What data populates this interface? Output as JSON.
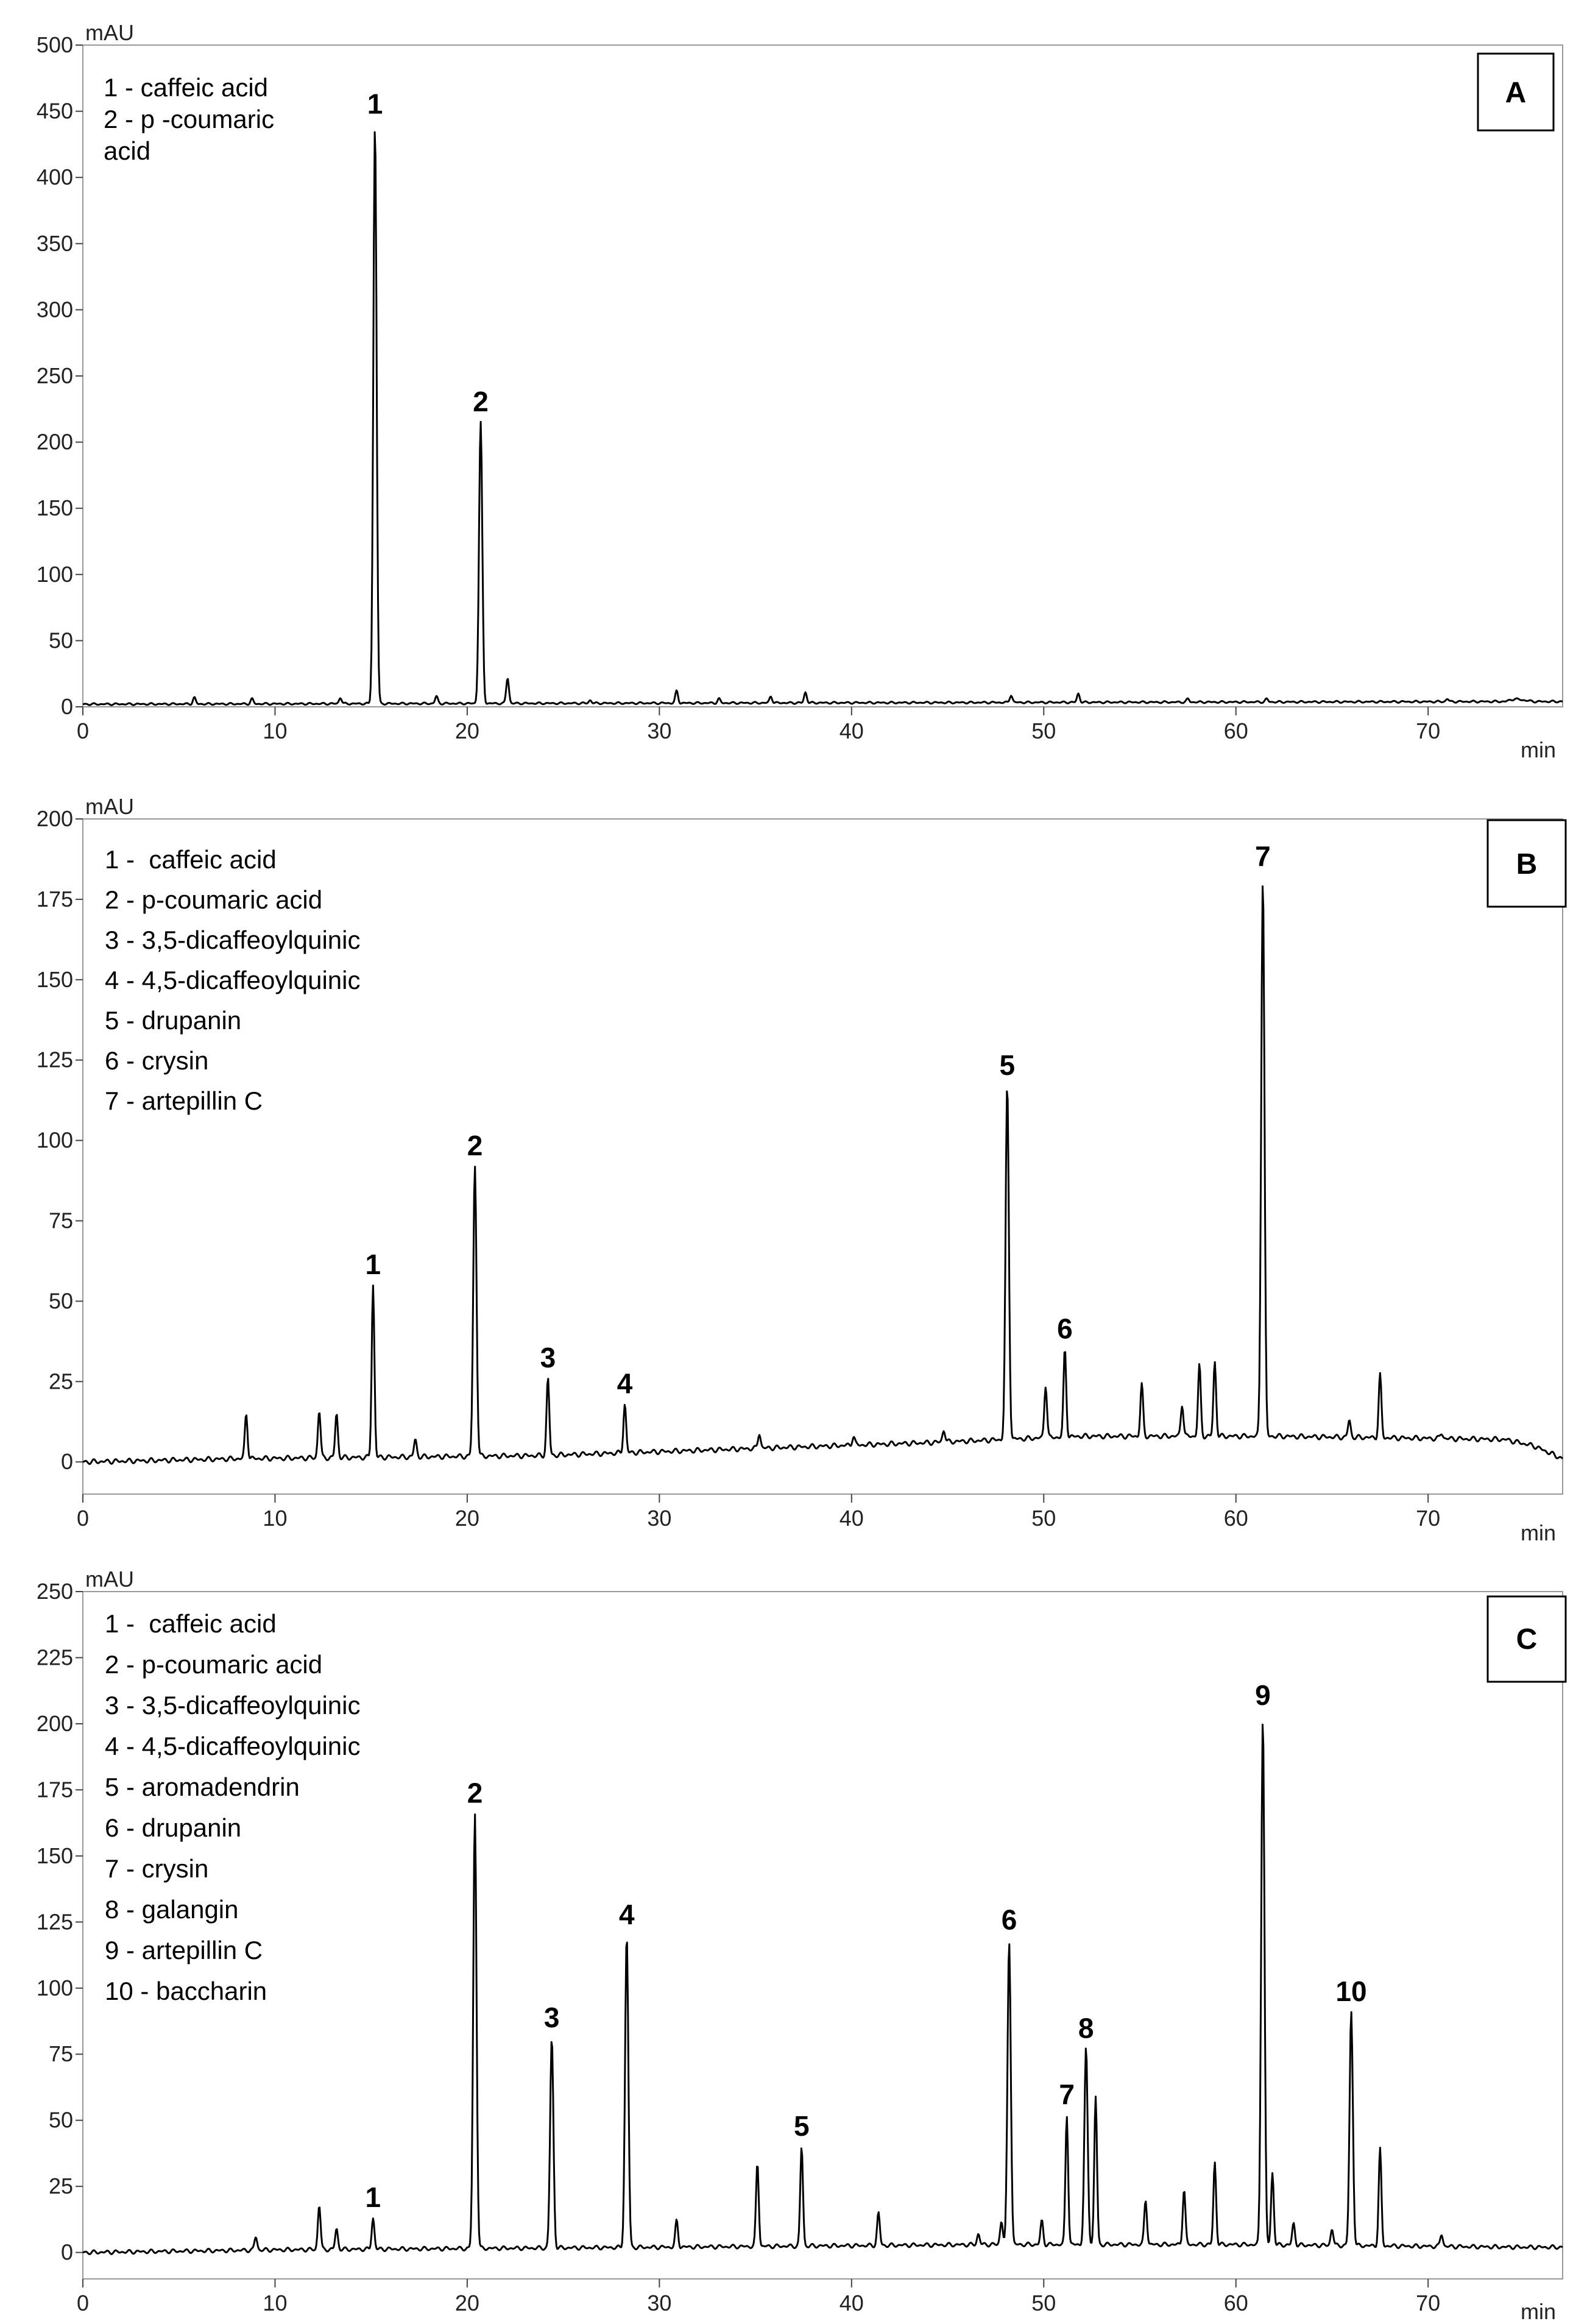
{
  "chart_data": [
    {
      "type": "line",
      "panel": "A",
      "x_unit": "min",
      "y_unit": "mAU",
      "xlim": [
        0,
        77
      ],
      "ylim": [
        0,
        500
      ],
      "xticks": [
        "0",
        "10",
        "20",
        "30",
        "40",
        "50",
        "60",
        "70"
      ],
      "yticks": [
        "0",
        "50",
        "100",
        "150",
        "200",
        "250",
        "300",
        "350",
        "400",
        "450",
        "500"
      ],
      "legend": [
        "1 - caffeic acid",
        "2 - p -coumaric",
        "acid"
      ],
      "legend_position": "top-left",
      "baseline": [
        [
          0,
          2
        ],
        [
          74,
          4
        ],
        [
          74.5,
          6
        ],
        [
          75.5,
          4
        ],
        [
          77,
          4
        ]
      ],
      "peaks": [
        {
          "label": "1",
          "x": 15.2,
          "y": 440
        },
        {
          "label": "2",
          "x": 20.7,
          "y": 215
        },
        {
          "label": "",
          "x": 5.8,
          "y": 7
        },
        {
          "label": "",
          "x": 8.8,
          "y": 6
        },
        {
          "label": "",
          "x": 13.4,
          "y": 7
        },
        {
          "label": "",
          "x": 18.4,
          "y": 8
        },
        {
          "label": "",
          "x": 22.1,
          "y": 22
        },
        {
          "label": "",
          "x": 26.4,
          "y": 5
        },
        {
          "label": "",
          "x": 30.9,
          "y": 12
        },
        {
          "label": "",
          "x": 33.1,
          "y": 6
        },
        {
          "label": "",
          "x": 35.8,
          "y": 8
        },
        {
          "label": "",
          "x": 37.6,
          "y": 11
        },
        {
          "label": "",
          "x": 48.3,
          "y": 9
        },
        {
          "label": "",
          "x": 51.8,
          "y": 10
        },
        {
          "label": "",
          "x": 57.5,
          "y": 6
        },
        {
          "label": "",
          "x": 61.6,
          "y": 6
        },
        {
          "label": "",
          "x": 71.0,
          "y": 6
        }
      ]
    },
    {
      "type": "line",
      "panel": "B",
      "x_unit": "min",
      "y_unit": "mAU",
      "xlim": [
        0,
        77
      ],
      "ylim": [
        -10,
        200
      ],
      "xticks": [
        "0",
        "10",
        "20",
        "30",
        "40",
        "50",
        "60",
        "70"
      ],
      "yticks": [
        "0",
        "25",
        "50",
        "75",
        "100",
        "125",
        "150",
        "175",
        "200"
      ],
      "legend": [
        "1 -  caffeic acid",
        "2 - p-coumaric acid",
        "3 - 3,5-dicaffeoylquinic",
        "4 - 4,5-dicaffeoylquinic",
        "5 - drupanin",
        "6 - crysin",
        "7 - artepillin C"
      ],
      "legend_position": "top-left",
      "baseline": [
        [
          0,
          0
        ],
        [
          8,
          1
        ],
        [
          24,
          2
        ],
        [
          34,
          4
        ],
        [
          44,
          6
        ],
        [
          52,
          8
        ],
        [
          62,
          8
        ],
        [
          74,
          7
        ],
        [
          75.5,
          5
        ],
        [
          77,
          1
        ]
      ],
      "peaks": [
        {
          "label": "1",
          "x": 15.1,
          "y": 55
        },
        {
          "label": "2",
          "x": 20.4,
          "y": 92
        },
        {
          "label": "3",
          "x": 24.2,
          "y": 26
        },
        {
          "label": "4",
          "x": 28.2,
          "y": 18
        },
        {
          "label": "5",
          "x": 48.1,
          "y": 117
        },
        {
          "label": "6",
          "x": 51.1,
          "y": 35
        },
        {
          "label": "7",
          "x": 61.4,
          "y": 182
        },
        {
          "label": "",
          "x": 8.5,
          "y": 15
        },
        {
          "label": "",
          "x": 12.3,
          "y": 16
        },
        {
          "label": "",
          "x": 13.2,
          "y": 15
        },
        {
          "label": "",
          "x": 17.3,
          "y": 7
        },
        {
          "label": "",
          "x": 35.2,
          "y": 9
        },
        {
          "label": "",
          "x": 40.1,
          "y": 8
        },
        {
          "label": "",
          "x": 44.8,
          "y": 10
        },
        {
          "label": "",
          "x": 50.1,
          "y": 24
        },
        {
          "label": "",
          "x": 55.1,
          "y": 24
        },
        {
          "label": "",
          "x": 57.2,
          "y": 18
        },
        {
          "label": "",
          "x": 58.1,
          "y": 30
        },
        {
          "label": "",
          "x": 58.9,
          "y": 31
        },
        {
          "label": "",
          "x": 65.9,
          "y": 13
        },
        {
          "label": "",
          "x": 67.5,
          "y": 27
        },
        {
          "label": "",
          "x": 70.7,
          "y": 9
        }
      ]
    },
    {
      "type": "line",
      "panel": "C",
      "x_unit": "min",
      "y_unit": "mAU",
      "xlim": [
        0,
        77
      ],
      "ylim": [
        -10,
        250
      ],
      "xticks": [
        "0",
        "10",
        "20",
        "30",
        "40",
        "50",
        "60",
        "70"
      ],
      "yticks": [
        "0",
        "25",
        "50",
        "75",
        "100",
        "125",
        "150",
        "175",
        "200",
        "225",
        "250"
      ],
      "legend": [
        "1 -  caffeic acid",
        "2 - p-coumaric acid",
        "3 - 3,5-dicaffeoylquinic",
        "4 - 4,5-dicaffeoylquinic",
        "5 - aromadendrin",
        "6 - drupanin",
        "7 - crysin",
        "8 - galangin",
        "9 - artepillin C",
        "10 - baccharin"
      ],
      "legend_position": "top-left",
      "baseline": [
        [
          0,
          0
        ],
        [
          10,
          1
        ],
        [
          30,
          2
        ],
        [
          47,
          3
        ],
        [
          60,
          3
        ],
        [
          75,
          2
        ],
        [
          77,
          2
        ]
      ],
      "peaks": [
        {
          "label": "1",
          "x": 15.1,
          "y": 13
        },
        {
          "label": "2",
          "x": 20.4,
          "y": 166
        },
        {
          "label": "3",
          "x": 24.4,
          "y": 81
        },
        {
          "label": "4",
          "x": 28.3,
          "y": 120
        },
        {
          "label": "5",
          "x": 37.4,
          "y": 40
        },
        {
          "label": "6",
          "x": 48.2,
          "y": 118
        },
        {
          "label": "7",
          "x": 51.2,
          "y": 52
        },
        {
          "label": "8",
          "x": 52.2,
          "y": 77
        },
        {
          "label": "9",
          "x": 61.4,
          "y": 203
        },
        {
          "label": "10",
          "x": 66.0,
          "y": 91
        },
        {
          "label": "",
          "x": 12.3,
          "y": 18
        },
        {
          "label": "",
          "x": 13.2,
          "y": 9
        },
        {
          "label": "",
          "x": 9.0,
          "y": 6
        },
        {
          "label": "",
          "x": 30.9,
          "y": 12
        },
        {
          "label": "",
          "x": 35.1,
          "y": 34
        },
        {
          "label": "",
          "x": 41.4,
          "y": 15
        },
        {
          "label": "",
          "x": 46.6,
          "y": 7
        },
        {
          "label": "",
          "x": 47.8,
          "y": 12
        },
        {
          "label": "",
          "x": 49.9,
          "y": 12
        },
        {
          "label": "",
          "x": 52.7,
          "y": 59
        },
        {
          "label": "",
          "x": 55.3,
          "y": 20
        },
        {
          "label": "",
          "x": 57.3,
          "y": 24
        },
        {
          "label": "",
          "x": 58.9,
          "y": 34
        },
        {
          "label": "",
          "x": 61.9,
          "y": 30
        },
        {
          "label": "",
          "x": 63.0,
          "y": 11
        },
        {
          "label": "",
          "x": 65.0,
          "y": 9
        },
        {
          "label": "",
          "x": 67.5,
          "y": 39
        },
        {
          "label": "",
          "x": 70.7,
          "y": 7
        }
      ]
    }
  ]
}
